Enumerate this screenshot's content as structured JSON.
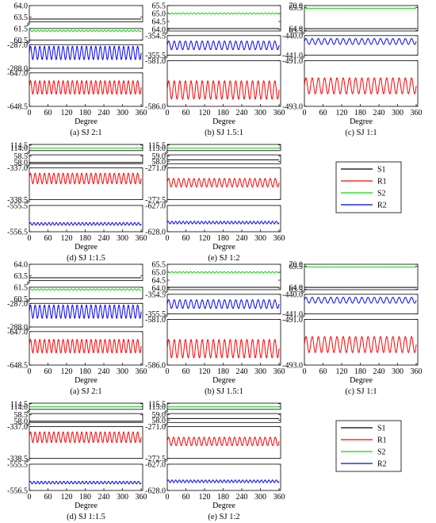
{
  "figure": {
    "panels_per_group": 5,
    "groups": 2,
    "xlabel": "Degree",
    "xticks": [
      0,
      60,
      120,
      180,
      240,
      300,
      360
    ],
    "xlim": [
      0,
      365
    ]
  },
  "legend": [
    {
      "name": "S1",
      "color": "#000000"
    },
    {
      "name": "R1",
      "color": "#ff0000"
    },
    {
      "name": "S2",
      "color": "#00dd00"
    },
    {
      "name": "R2",
      "color": "#0000ff"
    }
  ],
  "chart_data": [
    {
      "type": "line",
      "title": "(a) SJ 2:1",
      "xlabel": "Degree",
      "segments": [
        {
          "ticks": [
            "64.0",
            "63.5"
          ],
          "range": [
            63.3,
            64.0
          ],
          "series": [
            {
              "name": "S1",
              "mean": 63.42,
              "amp": 0.0,
              "cycles": 0
            }
          ]
        },
        {
          "ticks": [
            "61.5",
            "60.5"
          ],
          "range": [
            60.5,
            61.5
          ],
          "series": [
            {
              "name": "S2",
              "mean": 61.3,
              "amp": 0.06,
              "cycles": 30
            }
          ]
        },
        {
          "ticks": [
            "-287.0",
            "-288.0"
          ],
          "range": [
            -288.0,
            -287.0
          ],
          "series": [
            {
              "name": "R2",
              "mean": -287.35,
              "amp": 0.28,
              "cycles": 24
            }
          ]
        },
        {
          "ticks": [
            "-647.0",
            "-648.5"
          ],
          "range": [
            -648.5,
            -647.0
          ],
          "series": [
            {
              "name": "R1",
              "mean": -647.65,
              "amp": 0.3,
              "cycles": 24
            }
          ]
        }
      ]
    },
    {
      "type": "line",
      "title": "(b) SJ 1.5:1",
      "xlabel": "Degree",
      "segments": [
        {
          "ticks": [
            "65.5",
            "65.0",
            "64.5",
            "64.0"
          ],
          "range": [
            63.9,
            65.5
          ],
          "series": [
            {
              "name": "S2",
              "mean": 65.0,
              "amp": 0.04,
              "cycles": 30
            },
            {
              "name": "S1",
              "mean": 64.05,
              "amp": 0.0,
              "cycles": 0
            }
          ]
        },
        {
          "ticks": [
            "-354.5",
            "-355.5"
          ],
          "range": [
            -355.5,
            -354.5
          ],
          "series": [
            {
              "name": "R2",
              "mean": -355.0,
              "amp": 0.22,
              "cycles": 20
            }
          ]
        },
        {
          "ticks": [
            "-581.0",
            "-586.0"
          ],
          "range": [
            -586.0,
            -581.0
          ],
          "series": [
            {
              "name": "R1",
              "mean": -584.2,
              "amp": 1.0,
              "cycles": 20
            }
          ]
        }
      ]
    },
    {
      "type": "line",
      "title": "(c) SJ 1:1",
      "xlabel": "Degree",
      "segments": [
        {
          "ticks": [
            "70.0",
            "69.5",
            "64.0",
            "63.5"
          ],
          "range": [
            63.4,
            70.0
          ],
          "series": [
            {
              "name": "S2",
              "mean": 69.3,
              "amp": 0.03,
              "cycles": 30
            },
            {
              "name": "S1",
              "mean": 64.0,
              "amp": 0.0,
              "cycles": 0
            }
          ]
        },
        {
          "ticks": [
            "-440.0",
            "-441.0"
          ],
          "range": [
            -441.0,
            -440.0
          ],
          "series": [
            {
              "name": "R2",
              "mean": -440.3,
              "amp": 0.15,
              "cycles": 18
            }
          ]
        },
        {
          "ticks": [
            "-491.0",
            "-493.0"
          ],
          "range": [
            -493.0,
            -491.0
          ],
          "series": [
            {
              "name": "R1",
              "mean": -492.1,
              "amp": 0.35,
              "cycles": 18
            }
          ]
        }
      ]
    },
    {
      "type": "line",
      "title": "(d) SJ 1:1.5",
      "xlabel": "Degree",
      "segments": [
        {
          "ticks": [
            "114.5",
            "114.0"
          ],
          "range": [
            113.6,
            114.6
          ],
          "series": [
            {
              "name": "S2",
              "mean": 114.0,
              "amp": 0.0,
              "cycles": 0
            }
          ]
        },
        {
          "ticks": [
            "58.5",
            "58.0"
          ],
          "range": [
            57.9,
            58.6
          ],
          "series": [
            {
              "name": "S1",
              "mean": 58.0,
              "amp": 0.0,
              "cycles": 0
            }
          ]
        },
        {
          "ticks": [
            "-337.0",
            "-338.5"
          ],
          "range": [
            -338.5,
            -337.0
          ],
          "series": [
            {
              "name": "R1",
              "mean": -337.5,
              "amp": 0.25,
              "cycles": 24
            }
          ]
        },
        {
          "ticks": [
            "-555.5",
            "-556.5"
          ],
          "range": [
            -556.5,
            -555.5
          ],
          "series": [
            {
              "name": "R2",
              "mean": -556.2,
              "amp": 0.05,
              "cycles": 30
            }
          ]
        }
      ]
    },
    {
      "type": "line",
      "title": "(e) SJ 1:2",
      "xlabel": "Degree",
      "segments": [
        {
          "ticks": [
            "115.5",
            "115.0"
          ],
          "range": [
            114.6,
            115.6
          ],
          "series": [
            {
              "name": "S2",
              "mean": 115.0,
              "amp": 0.0,
              "cycles": 0
            }
          ]
        },
        {
          "ticks": [
            "59.0",
            "58.0"
          ],
          "range": [
            57.6,
            59.2
          ],
          "series": [
            {
              "name": "S1",
              "mean": 58.3,
              "amp": 0.0,
              "cycles": 0
            }
          ]
        },
        {
          "ticks": [
            "-271.0",
            "-272.5"
          ],
          "range": [
            -272.5,
            -271.0
          ],
          "series": [
            {
              "name": "R1",
              "mean": -271.7,
              "amp": 0.2,
              "cycles": 22
            }
          ]
        },
        {
          "ticks": [
            "-627.0",
            "-628.0"
          ],
          "range": [
            -628.0,
            -627.0
          ],
          "series": [
            {
              "name": "R2",
              "mean": -627.65,
              "amp": 0.05,
              "cycles": 30
            }
          ]
        }
      ]
    }
  ]
}
